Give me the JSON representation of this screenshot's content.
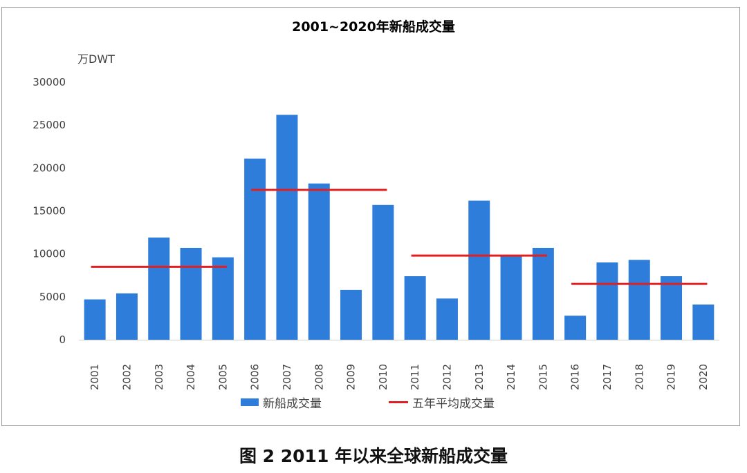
{
  "caption": "图 2   2011 年以来全球新船成交量",
  "chart_data": {
    "type": "bar",
    "title": "2001~2020年新船成交量",
    "ylabel": "万DWT",
    "xlabel": "",
    "ylim": [
      0,
      30000
    ],
    "yticks": [
      0,
      5000,
      10000,
      15000,
      20000,
      25000,
      30000
    ],
    "categories": [
      "2001",
      "2002",
      "2003",
      "2004",
      "2005",
      "2006",
      "2007",
      "2008",
      "2009",
      "2010",
      "2011",
      "2012",
      "2013",
      "2014",
      "2015",
      "2016",
      "2017",
      "2018",
      "2019",
      "2020"
    ],
    "series": [
      {
        "name": "新船成交量",
        "type": "bar",
        "color": "#2e7ddb",
        "values": [
          4700,
          5400,
          11900,
          10700,
          9600,
          21100,
          26200,
          18200,
          5800,
          15700,
          7400,
          4800,
          16200,
          9800,
          10700,
          2800,
          9000,
          9300,
          7400,
          4100
        ]
      },
      {
        "name": "五年平均成交量",
        "type": "line",
        "color": "#e02020",
        "segments": [
          {
            "from": "2001",
            "to": "2005",
            "value": 8500
          },
          {
            "from": "2006",
            "to": "2010",
            "value": 17450
          },
          {
            "from": "2011",
            "to": "2015",
            "value": 9800
          },
          {
            "from": "2016",
            "to": "2020",
            "value": 6500
          }
        ]
      }
    ],
    "grid": false,
    "legend_position": "bottom"
  }
}
